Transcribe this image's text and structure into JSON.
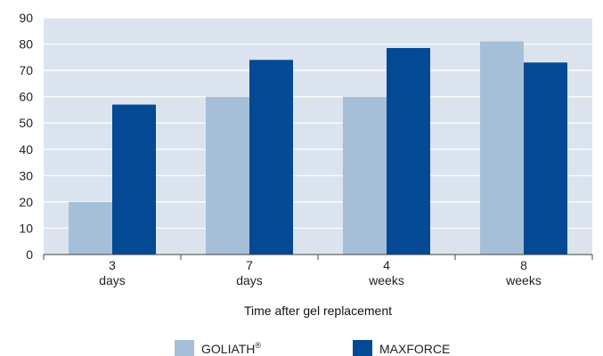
{
  "chart_data": {
    "type": "bar",
    "categories": [
      [
        "3",
        "days"
      ],
      [
        "7",
        "days"
      ],
      [
        "4",
        "weeks"
      ],
      [
        "8",
        "weeks"
      ]
    ],
    "series": [
      {
        "name": "GOLIATH",
        "name_suffix": "®",
        "color": "#a6bfd8",
        "values": [
          20,
          60,
          60,
          81
        ]
      },
      {
        "name": "MAXFORCE",
        "color": "#034994",
        "values": [
          57,
          74,
          78.5,
          73
        ]
      }
    ],
    "xlabel": "Time after gel replacement",
    "ylabel": "",
    "ylim": [
      0,
      90
    ],
    "yticks": [
      0,
      10,
      20,
      30,
      40,
      50,
      60,
      70,
      80,
      90
    ],
    "grid": true,
    "plot_background": "#dbe4ee",
    "grid_color": "#ffffff",
    "legend_position": "bottom"
  }
}
